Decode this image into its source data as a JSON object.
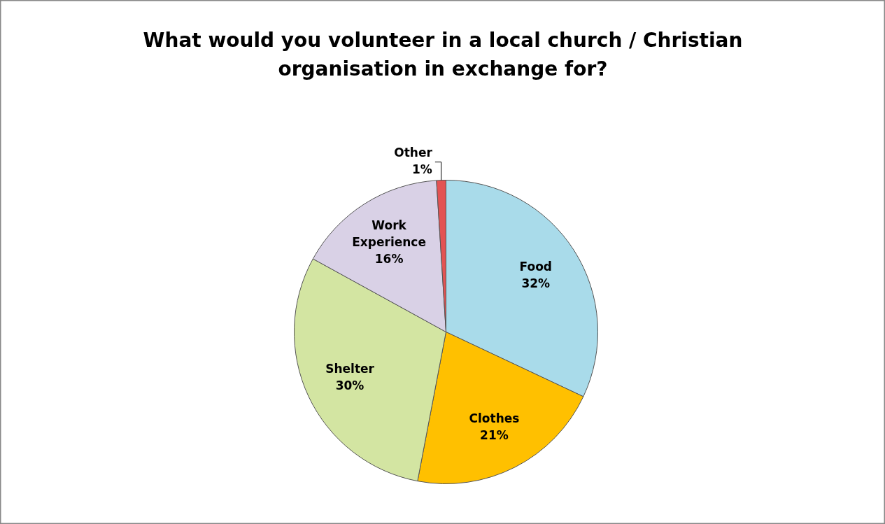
{
  "chart_data": {
    "type": "pie",
    "title": "What would you volunteer in a local church / Christian organisation in exchange for?",
    "categories": [
      "Food",
      "Clothes",
      "Shelter",
      "Work Experience",
      "Other"
    ],
    "values": [
      32,
      21,
      30,
      16,
      1
    ],
    "colors": [
      "#a9dbea",
      "#ffc000",
      "#d3e5a2",
      "#d9d1e6",
      "#e35353"
    ],
    "value_labels": [
      "32%",
      "21%",
      "30%",
      "16%",
      "1%"
    ]
  }
}
